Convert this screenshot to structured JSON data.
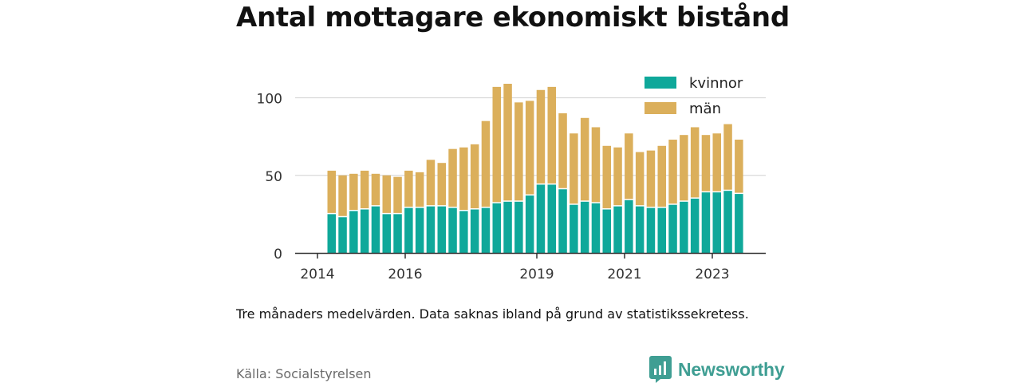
{
  "title": "Antal mottagare ekonomiskt bistånd",
  "note": "Tre månaders medelvärden. Data saknas ibland på grund av statistikssekretess.",
  "source": "Källa: Socialstyrelsen",
  "brand": {
    "name": "Newsworthy",
    "icon": "newsworthy-logo-icon",
    "color": "#3f9e93"
  },
  "chart_data": {
    "type": "bar",
    "stacked": true,
    "x_ticks": [
      "2014",
      "2016",
      "2019",
      "2021",
      "2023"
    ],
    "y_ticks": [
      "0",
      "50",
      "100"
    ],
    "ylim": [
      0,
      110
    ],
    "grid": true,
    "legend_position": "top-right",
    "series": [
      {
        "name": "kvinnor",
        "color": "#0fa89a",
        "values": [
          25,
          23,
          27,
          28,
          30,
          25,
          25,
          29,
          29,
          30,
          30,
          29,
          27,
          28,
          29,
          32,
          33,
          33,
          37,
          44,
          44,
          41,
          31,
          33,
          32,
          28,
          30,
          34,
          30,
          29,
          29,
          31,
          33,
          35,
          39,
          39,
          40,
          38
        ]
      },
      {
        "name": "män",
        "color": "#dbaf5b",
        "values": [
          28,
          27,
          24,
          25,
          21,
          25,
          24,
          24,
          23,
          30,
          28,
          38,
          41,
          42,
          56,
          75,
          76,
          64,
          61,
          61,
          63,
          49,
          46,
          54,
          49,
          41,
          38,
          43,
          35,
          37,
          40,
          42,
          43,
          46,
          37,
          38,
          43,
          35
        ]
      }
    ]
  }
}
